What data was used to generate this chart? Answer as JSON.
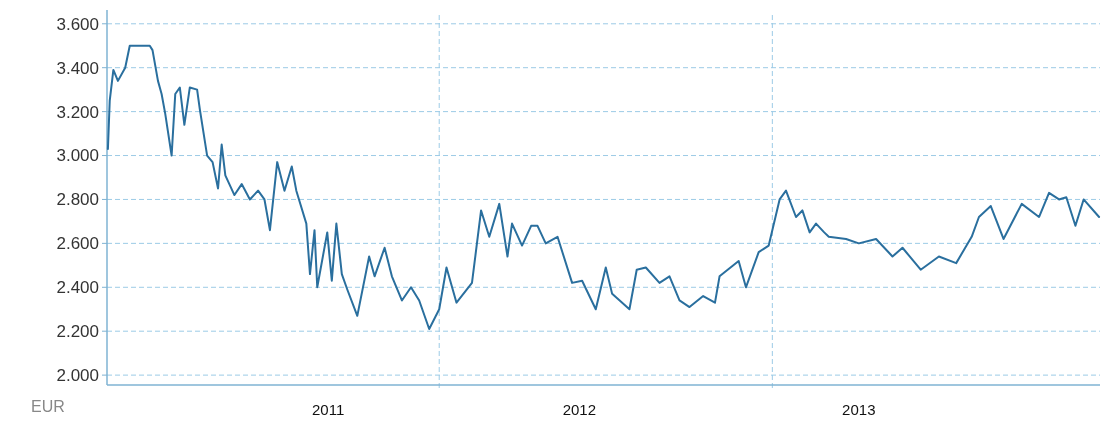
{
  "chart_data": {
    "type": "line",
    "ylabel": "EUR",
    "x": [
      "2011-01-02",
      "2011-01-04",
      "2011-01-08",
      "2011-01-13",
      "2011-01-21",
      "2011-01-26",
      "2011-02-06",
      "2011-02-17",
      "2011-02-20",
      "2011-02-26",
      "2011-03-02",
      "2011-03-06",
      "2011-03-13",
      "2011-03-17",
      "2011-03-22",
      "2011-03-27",
      "2011-04-02",
      "2011-04-10",
      "2011-04-13",
      "2011-04-21",
      "2011-04-27",
      "2011-05-03",
      "2011-05-07",
      "2011-05-11",
      "2011-05-21",
      "2011-05-29",
      "2011-06-07",
      "2011-06-16",
      "2011-06-23",
      "2011-06-29",
      "2011-07-07",
      "2011-07-15",
      "2011-07-23",
      "2011-07-28",
      "2011-08-08",
      "2011-08-12",
      "2011-08-17",
      "2011-08-20",
      "2011-08-31",
      "2011-09-05",
      "2011-09-10",
      "2011-09-16",
      "2011-09-22",
      "2011-10-03",
      "2011-10-16",
      "2011-10-22",
      "2011-11-02",
      "2011-11-10",
      "2011-11-21",
      "2011-12-01",
      "2011-12-10",
      "2011-12-21",
      "2012-01-01",
      "2012-01-09",
      "2012-01-20",
      "2012-02-06",
      "2012-02-16",
      "2012-02-25",
      "2012-03-07",
      "2012-03-16",
      "2012-03-21",
      "2012-04-01",
      "2012-04-11",
      "2012-04-18",
      "2012-04-27",
      "2012-05-10",
      "2012-05-26",
      "2012-06-06",
      "2012-06-21",
      "2012-07-02",
      "2012-07-09",
      "2012-07-28",
      "2012-08-05",
      "2012-08-15",
      "2012-08-30",
      "2012-09-10",
      "2012-09-21",
      "2012-10-02",
      "2012-10-17",
      "2012-10-30",
      "2012-11-04",
      "2012-11-25",
      "2012-12-03",
      "2012-12-17",
      "2012-12-28",
      "2013-01-09",
      "2013-01-16",
      "2013-01-27",
      "2013-02-03",
      "2013-02-11",
      "2013-02-18",
      "2013-02-27",
      "2013-03-04",
      "2013-03-23",
      "2013-04-06",
      "2013-04-25",
      "2013-05-13",
      "2013-05-24",
      "2013-06-13",
      "2013-07-03",
      "2013-07-22",
      "2013-08-08",
      "2013-08-16",
      "2013-08-29",
      "2013-09-12",
      "2013-10-02",
      "2013-10-21",
      "2013-11-01",
      "2013-11-12",
      "2013-11-20",
      "2013-11-30",
      "2013-12-09",
      "2013-12-26"
    ],
    "series": [
      {
        "color": "#2a6f9e",
        "values": [
          3030,
          3250,
          3390,
          3340,
          3400,
          3500,
          3500,
          3500,
          3480,
          3340,
          3280,
          3190,
          3000,
          3280,
          3310,
          3140,
          3310,
          3300,
          3210,
          3000,
          2970,
          2850,
          3050,
          2910,
          2820,
          2870,
          2800,
          2840,
          2800,
          2660,
          2970,
          2840,
          2950,
          2840,
          2690,
          2460,
          2660,
          2400,
          2650,
          2430,
          2690,
          2460,
          2390,
          2270,
          2540,
          2450,
          2580,
          2450,
          2340,
          2400,
          2340,
          2210,
          2300,
          2490,
          2330,
          2420,
          2750,
          2630,
          2780,
          2540,
          2690,
          2590,
          2680,
          2680,
          2600,
          2630,
          2420,
          2430,
          2300,
          2490,
          2370,
          2300,
          2480,
          2490,
          2420,
          2450,
          2340,
          2310,
          2360,
          2330,
          2450,
          2520,
          2400,
          2560,
          2590,
          2800,
          2840,
          2720,
          2750,
          2650,
          2690,
          2650,
          2630,
          2620,
          2600,
          2620,
          2540,
          2580,
          2480,
          2540,
          2510,
          2630,
          2720,
          2770,
          2620,
          2780,
          2720,
          2830,
          2800,
          2810,
          2680,
          2800,
          2720
        ]
      }
    ],
    "xlim": [
      "2011-01-01",
      "2013-12-27"
    ],
    "xticks": [
      {
        "value": "2011-09-01",
        "label": "2011"
      },
      {
        "value": "2012-06-03",
        "label": "2012"
      },
      {
        "value": "2013-04-06",
        "label": "2013"
      }
    ],
    "ylim": [
      1955,
      3640
    ],
    "yticks": [
      {
        "value": 2000,
        "label": "2.000"
      },
      {
        "value": 2200,
        "label": "2.200"
      },
      {
        "value": 2400,
        "label": "2.400"
      },
      {
        "value": 2600,
        "label": "2.600"
      },
      {
        "value": 2800,
        "label": "2.800"
      },
      {
        "value": 3000,
        "label": "3.000"
      },
      {
        "value": 3200,
        "label": "3.200"
      },
      {
        "value": 3400,
        "label": "3.400"
      },
      {
        "value": 3600,
        "label": "3.600"
      }
    ],
    "grid": "y",
    "ref_lines": [
      {
        "axis": "x",
        "value": "2012-01-01",
        "color": "#9ccbe6",
        "line_style": "dashed"
      },
      {
        "axis": "x",
        "value": "2013-01-01",
        "color": "#9ccbe6",
        "line_style": "dashed"
      }
    ],
    "line_style": "solid"
  }
}
